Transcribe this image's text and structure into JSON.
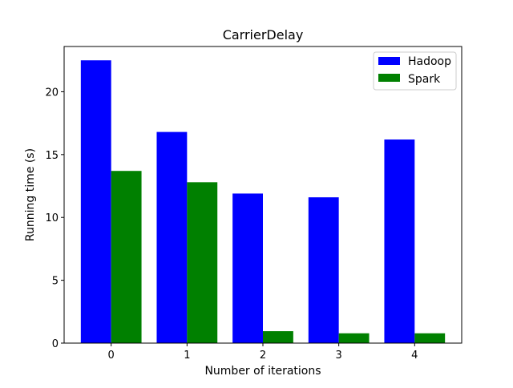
{
  "chart_data": {
    "type": "bar",
    "title": "CarrierDelay",
    "xlabel": "Number of iterations",
    "ylabel": "Running time (s)",
    "categories": [
      "0",
      "1",
      "2",
      "3",
      "4"
    ],
    "series": [
      {
        "name": "Hadoop",
        "color": "#0000ff",
        "values": [
          22.5,
          16.8,
          11.9,
          11.6,
          16.2
        ]
      },
      {
        "name": "Spark",
        "color": "#008000",
        "values": [
          13.7,
          12.8,
          0.95,
          0.78,
          0.78
        ]
      }
    ],
    "ylim": [
      0,
      23.6
    ],
    "yticks": [
      "0",
      "5",
      "10",
      "15",
      "20"
    ],
    "grid": false,
    "legend_position": "top-right"
  }
}
